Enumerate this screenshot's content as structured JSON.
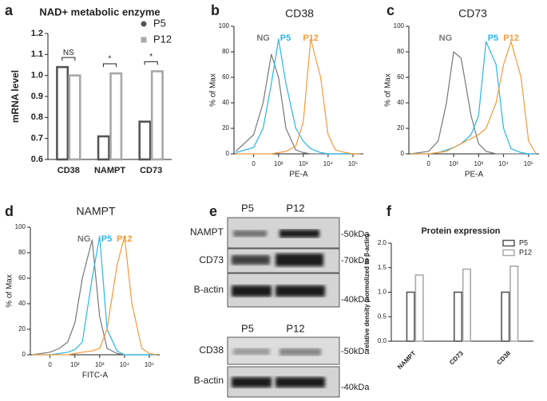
{
  "chart_data": [
    {
      "type": "bar",
      "panel": "a",
      "title": "NAD+ metabolic enzyme",
      "y_label": "mRNA level",
      "categories": [
        "CD38",
        "NAMPT",
        "CD73"
      ],
      "series": [
        {
          "name": "P5",
          "color": "#555555",
          "marker": "circle",
          "values": [
            1.04,
            0.71,
            0.78
          ]
        },
        {
          "name": "P12",
          "color": "#a8a8a8",
          "marker": "square",
          "values": [
            1.0,
            1.01,
            1.02
          ]
        }
      ],
      "annotations": [
        "NS",
        "*",
        "*"
      ],
      "ylim": [
        0.6,
        1.2
      ],
      "yticks": [
        0.6,
        0.7,
        0.8,
        0.9,
        {
          "value": 1,
          "label": "1.0"
        },
        1.1,
        1.2
      ],
      "legend": "upper right"
    },
    {
      "type": "line",
      "panel": "b",
      "title": "CD38",
      "y_label": "% of Max",
      "x_label": "PE-A",
      "xscale": "biexponential",
      "x": [
        -50,
        0,
        20,
        50,
        100,
        200,
        500,
        1000,
        2000,
        5000,
        10000,
        20000,
        50000,
        100000,
        200000
      ],
      "series": [
        {
          "name": "NG",
          "color": "#777777",
          "values": [
            2,
            15,
            40,
            78,
            60,
            20,
            3,
            1,
            0,
            0,
            0,
            0,
            0,
            0,
            0
          ]
        },
        {
          "name": "P5",
          "color": "#29b6e6",
          "values": [
            1,
            5,
            20,
            55,
            90,
            55,
            20,
            10,
            4,
            1,
            0,
            0,
            0,
            0,
            0
          ]
        },
        {
          "name": "P12",
          "color": "#f39a3c",
          "values": [
            0,
            0,
            0,
            0,
            1,
            2,
            6,
            25,
            90,
            60,
            15,
            3,
            1,
            0,
            0
          ]
        }
      ],
      "xlim": [
        -60,
        262144
      ],
      "xticks": [
        0,
        {
          "value": 100,
          "label": "10²"
        },
        {
          "value": 1000,
          "label": "10³"
        },
        {
          "value": 10000,
          "label": "10⁴"
        },
        {
          "value": 100000,
          "label": "10⁵"
        }
      ],
      "ylim": [
        0,
        100
      ],
      "yticks": [
        0,
        20,
        40,
        60,
        80,
        100
      ]
    },
    {
      "type": "line",
      "panel": "c",
      "title": "CD73",
      "y_label": "% of Max",
      "x_label": "PE-A",
      "xscale": "biexponential",
      "x": [
        -50,
        0,
        20,
        50,
        100,
        200,
        500,
        1000,
        2000,
        5000,
        10000,
        20000,
        50000,
        100000,
        200000
      ],
      "series": [
        {
          "name": "NG",
          "color": "#777777",
          "values": [
            0,
            2,
            10,
            40,
            80,
            75,
            30,
            8,
            2,
            0,
            0,
            0,
            0,
            0,
            0
          ]
        },
        {
          "name": "P5",
          "color": "#29b6e6",
          "values": [
            0,
            0,
            1,
            3,
            5,
            8,
            15,
            30,
            88,
            70,
            20,
            4,
            1,
            0,
            0
          ]
        },
        {
          "name": "P12",
          "color": "#f39a3c",
          "values": [
            0,
            0,
            1,
            2,
            5,
            8,
            12,
            15,
            20,
            40,
            70,
            88,
            60,
            10,
            0
          ]
        }
      ],
      "xlim": [
        -60,
        262144
      ],
      "xticks": [
        0,
        {
          "value": 100,
          "label": "10²"
        },
        {
          "value": 1000,
          "label": "10³"
        },
        {
          "value": 10000,
          "label": "10⁴"
        },
        {
          "value": 100000,
          "label": "10⁵"
        }
      ],
      "ylim": [
        0,
        100
      ],
      "yticks": [
        0,
        20,
        40,
        60,
        80,
        100
      ]
    },
    {
      "type": "line",
      "panel": "d",
      "title": "NAMPT",
      "y_label": "% of Max",
      "x_label": "FITC-A",
      "xscale": "biexponential",
      "x": [
        -50,
        0,
        20,
        50,
        100,
        200,
        500,
        1000,
        2000,
        5000,
        10000,
        20000,
        50000,
        100000,
        200000
      ],
      "series": [
        {
          "name": "NG",
          "color": "#777777",
          "values": [
            0,
            2,
            5,
            10,
            25,
            60,
            90,
            30,
            5,
            1,
            0,
            0,
            0,
            0,
            0
          ]
        },
        {
          "name": "P5",
          "color": "#29b6e6",
          "values": [
            0,
            0,
            1,
            2,
            4,
            10,
            60,
            93,
            20,
            3,
            0,
            0,
            0,
            0,
            0
          ]
        },
        {
          "name": "P12",
          "color": "#f39a3c",
          "values": [
            0,
            0,
            0,
            0,
            1,
            2,
            3,
            5,
            20,
            70,
            93,
            40,
            5,
            1,
            0
          ]
        }
      ],
      "xlim": [
        -60,
        262144
      ],
      "xticks": [
        0,
        {
          "value": 100,
          "label": "10²"
        },
        {
          "value": 1000,
          "label": "10³"
        },
        {
          "value": 10000,
          "label": "10⁴"
        },
        {
          "value": 100000,
          "label": "10⁵"
        }
      ],
      "ylim": [
        0,
        100
      ],
      "yticks": [
        0,
        20,
        40,
        60,
        80,
        100
      ]
    },
    {
      "type": "bar",
      "panel": "f",
      "title": "Protein expression",
      "y_label": "relative density (normolized to β-actin)",
      "categories": [
        "NAMPT",
        "CD73",
        "CD38"
      ],
      "series": [
        {
          "name": "P5",
          "color": "#555555",
          "marker": "box",
          "values": [
            1,
            1,
            1
          ]
        },
        {
          "name": "P12",
          "color": "#aaaaaa",
          "marker": "box",
          "values": [
            1.35,
            1.47,
            1.53
          ]
        }
      ],
      "ylim": [
        0,
        2
      ],
      "yticks": [
        {
          "value": 0,
          "label": "0.0"
        },
        0.5,
        {
          "value": 1,
          "label": "1.0"
        },
        1.5,
        {
          "value": 2,
          "label": "2.0"
        }
      ],
      "legend": "upper right"
    }
  ],
  "blot": {
    "panel": "e",
    "top": {
      "lanes": [
        "P5",
        "P12"
      ],
      "rows": [
        {
          "name": "NAMPT",
          "size": "-50kDa"
        },
        {
          "name": "CD73",
          "size": "-70kDa"
        },
        {
          "name": "B-actin",
          "size": "-40kDa"
        }
      ]
    },
    "bottom": {
      "lanes": [
        "P5",
        "P12"
      ],
      "rows": [
        {
          "name": "CD38",
          "size": "-50kDa"
        },
        {
          "name": "B-actin",
          "size": "-40kDa"
        }
      ]
    }
  }
}
